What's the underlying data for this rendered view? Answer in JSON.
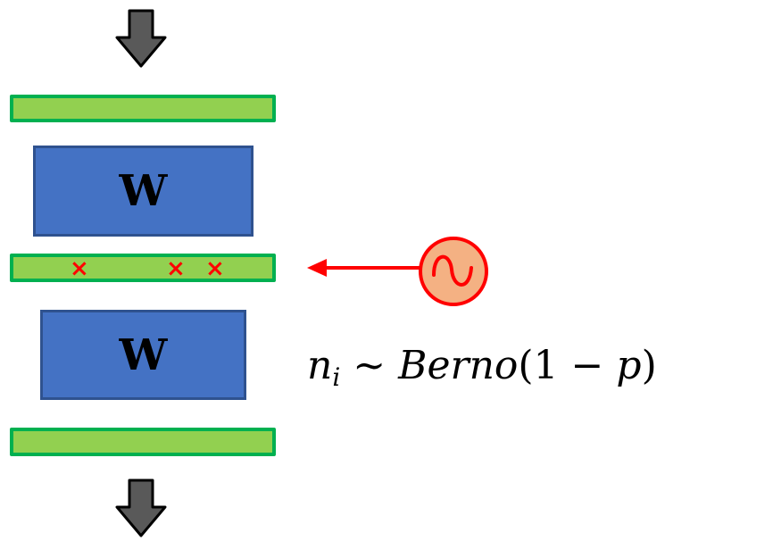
{
  "colors": {
    "green": "#92d050",
    "green_border": "#00b050",
    "blue": "#4472c4",
    "blue_border": "#2f528f",
    "arrow_gray": "#595959",
    "red": "#ff0000",
    "source_fill": "#f4b183"
  },
  "weight_blocks": [
    {
      "label": "W"
    },
    {
      "label": "W"
    }
  ],
  "dropout_marks": [
    "×",
    "×",
    "×"
  ],
  "equation": {
    "var": "n",
    "subscript": "i",
    "tilde": " ~ ",
    "dist": "Berno",
    "open": "(1 − ",
    "param": "p",
    "close": ")"
  },
  "icons": [
    "down-arrow-icon",
    "sine-wave-icon",
    "left-arrow-icon"
  ]
}
